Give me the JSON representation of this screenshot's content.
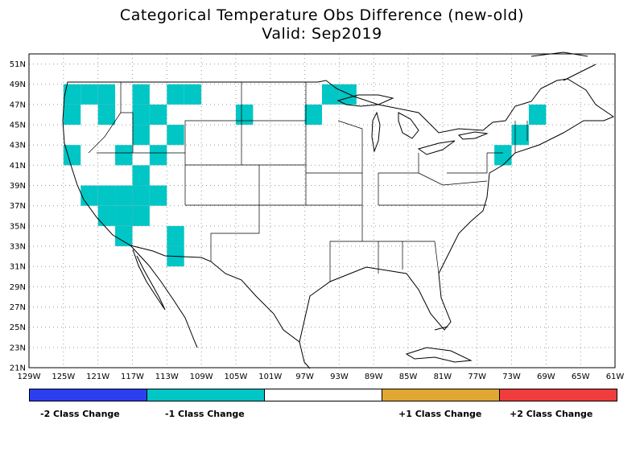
{
  "title": "Categorical Temperature Obs Difference (new-old)",
  "subtitle": "Valid: Sep2019",
  "map": {
    "lon_labels": [
      "129W",
      "125W",
      "121W",
      "117W",
      "113W",
      "109W",
      "105W",
      "101W",
      "97W",
      "93W",
      "89W",
      "85W",
      "81W",
      "77W",
      "73W",
      "69W",
      "65W",
      "61W"
    ],
    "lat_labels": [
      "51N",
      "49N",
      "47N",
      "45N",
      "43N",
      "41N",
      "39N",
      "37N",
      "35N",
      "33N",
      "31N",
      "29N",
      "27N",
      "25N",
      "23N",
      "21N"
    ],
    "lon_range": [
      -129,
      -61
    ],
    "lat_range": [
      21,
      52
    ],
    "cell_size_deg": 2,
    "changed_cells": [
      {
        "lon": -124,
        "lat": 48,
        "category": -1
      },
      {
        "lon": -122,
        "lat": 48,
        "category": -1
      },
      {
        "lon": -120,
        "lat": 48,
        "category": -1
      },
      {
        "lon": -116,
        "lat": 48,
        "category": -1
      },
      {
        "lon": -112,
        "lat": 48,
        "category": -1
      },
      {
        "lon": -110,
        "lat": 48,
        "category": -1
      },
      {
        "lon": -94,
        "lat": 48,
        "category": -1
      },
      {
        "lon": -92,
        "lat": 48,
        "category": -1
      },
      {
        "lon": -124,
        "lat": 46,
        "category": -1
      },
      {
        "lon": -120,
        "lat": 46,
        "category": -1
      },
      {
        "lon": -116,
        "lat": 46,
        "category": -1
      },
      {
        "lon": -114,
        "lat": 46,
        "category": -1
      },
      {
        "lon": -104,
        "lat": 46,
        "category": -1
      },
      {
        "lon": -96,
        "lat": 46,
        "category": -1
      },
      {
        "lon": -70,
        "lat": 46,
        "category": -1
      },
      {
        "lon": -116,
        "lat": 44,
        "category": -1
      },
      {
        "lon": -112,
        "lat": 44,
        "category": -1
      },
      {
        "lon": -72,
        "lat": 44,
        "category": -1
      },
      {
        "lon": -124,
        "lat": 42,
        "category": -1
      },
      {
        "lon": -118,
        "lat": 42,
        "category": -1
      },
      {
        "lon": -114,
        "lat": 42,
        "category": -1
      },
      {
        "lon": -74,
        "lat": 42,
        "category": -1
      },
      {
        "lon": -116,
        "lat": 40,
        "category": -1
      },
      {
        "lon": -116,
        "lat": 38,
        "category": -1
      },
      {
        "lon": -114,
        "lat": 38,
        "category": -1
      },
      {
        "lon": -122,
        "lat": 38,
        "category": -1
      },
      {
        "lon": -120,
        "lat": 38,
        "category": -1
      },
      {
        "lon": -118,
        "lat": 38,
        "category": -1
      },
      {
        "lon": -120,
        "lat": 36,
        "category": -1
      },
      {
        "lon": -118,
        "lat": 36,
        "category": -1
      },
      {
        "lon": -116,
        "lat": 36,
        "category": -1
      },
      {
        "lon": -118,
        "lat": 34,
        "category": -1
      },
      {
        "lon": -112,
        "lat": 34,
        "category": -1
      },
      {
        "lon": -112,
        "lat": 32,
        "category": -1
      }
    ]
  },
  "legend": {
    "items": [
      {
        "label": "-2 Class Change",
        "color": "#2b3ff0"
      },
      {
        "label": "-1 Class Change",
        "color": "#00c6c6"
      },
      {
        "label": "",
        "color": "#ffffff"
      },
      {
        "label": "+1 Class Change",
        "color": "#e0a830"
      },
      {
        "label": "+2 Class Change",
        "color": "#f03c3c"
      }
    ]
  },
  "colors": {
    "grid": "#9a9a9a",
    "border": "#000000",
    "land_lines": "#000000"
  }
}
